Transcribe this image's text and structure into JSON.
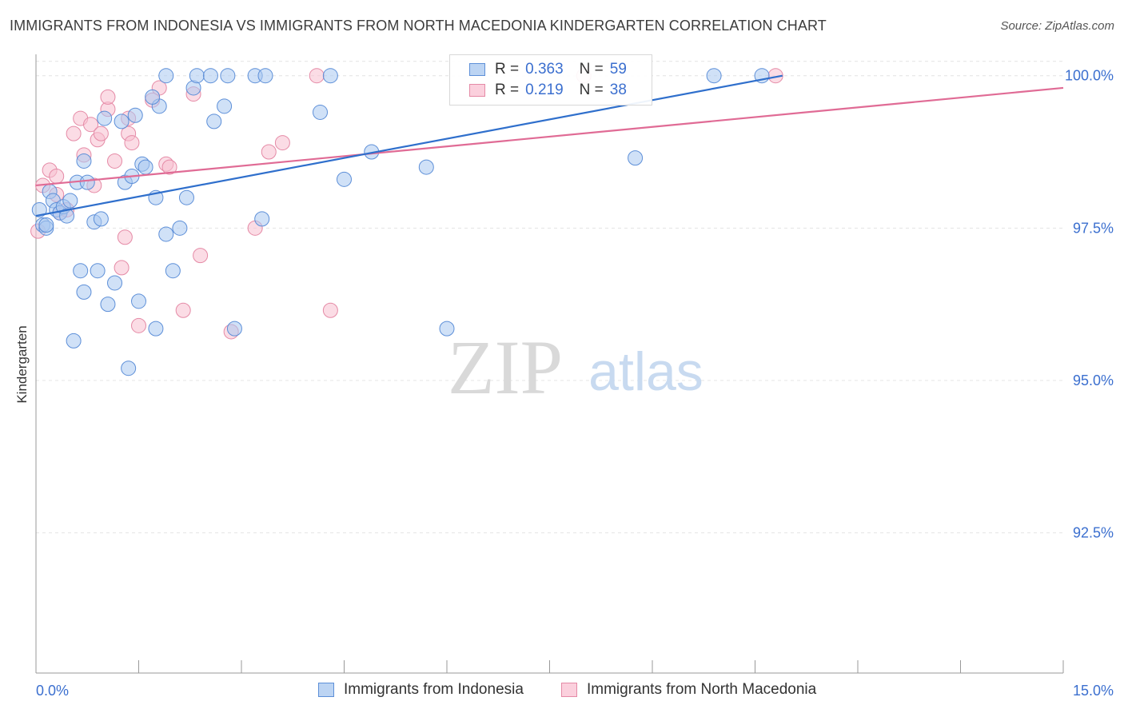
{
  "header": {
    "title": "IMMIGRANTS FROM INDONESIA VS IMMIGRANTS FROM NORTH MACEDONIA KINDERGARTEN CORRELATION CHART",
    "source": "Source: ZipAtlas.com"
  },
  "watermark": {
    "zip": "ZIP",
    "atlas": "atlas"
  },
  "legend": {
    "rows": [
      {
        "r_label": "R =",
        "r_value": "0.363",
        "n_label": "N =",
        "n_value": "59"
      },
      {
        "r_label": "R =",
        "r_value": "0.219",
        "n_label": "N =",
        "n_value": "38"
      }
    ]
  },
  "chart_data": {
    "type": "scatter",
    "title": "IMMIGRANTS FROM INDONESIA VS IMMIGRANTS FROM NORTH MACEDONIA KINDERGARTEN CORRELATION CHART",
    "xlabel": "",
    "ylabel": "Kindergarten",
    "xlim": [
      0,
      15
    ],
    "ylim": [
      90.2,
      100.35
    ],
    "x_tick_labels": [
      "0.0%",
      "15.0%"
    ],
    "y_ticks": [
      100.0,
      97.5,
      95.0,
      92.5
    ],
    "y_tick_labels": [
      "100.0%",
      "97.5%",
      "95.0%",
      "92.5%"
    ],
    "grid": true,
    "legend_position": "bottom",
    "colors": {
      "indonesia_fill": "#a9c8f0",
      "indonesia_stroke": "#5d8fd8",
      "indonesia_line": "#2f6fcc",
      "macedonia_fill": "#f8bfd0",
      "macedonia_stroke": "#e58aa6",
      "macedonia_line": "#e06b95"
    },
    "series": [
      {
        "name": "Immigrants from Indonesia",
        "r": 0.363,
        "n": 59,
        "trend": {
          "x": [
            0.0,
            10.9
          ],
          "y": [
            97.7,
            100.0
          ]
        },
        "points": [
          [
            0.05,
            97.8
          ],
          [
            0.1,
            97.55
          ],
          [
            0.15,
            97.5
          ],
          [
            0.2,
            98.1
          ],
          [
            0.25,
            97.95
          ],
          [
            0.3,
            97.8
          ],
          [
            0.35,
            97.75
          ],
          [
            0.4,
            97.85
          ],
          [
            0.45,
            97.7
          ],
          [
            0.5,
            97.95
          ],
          [
            0.6,
            98.25
          ],
          [
            0.55,
            95.65
          ],
          [
            0.7,
            98.6
          ],
          [
            0.75,
            98.25
          ],
          [
            0.85,
            97.6
          ],
          [
            0.95,
            97.65
          ],
          [
            0.65,
            96.8
          ],
          [
            0.9,
            96.8
          ],
          [
            0.7,
            96.45
          ],
          [
            1.0,
            99.3
          ],
          [
            1.05,
            96.25
          ],
          [
            1.15,
            96.6
          ],
          [
            1.25,
            99.25
          ],
          [
            1.3,
            98.25
          ],
          [
            1.4,
            98.35
          ],
          [
            1.45,
            99.35
          ],
          [
            1.5,
            96.3
          ],
          [
            1.55,
            98.55
          ],
          [
            1.6,
            98.5
          ],
          [
            1.75,
            98.0
          ],
          [
            1.8,
            99.5
          ],
          [
            1.9,
            100.0
          ],
          [
            2.0,
            96.8
          ],
          [
            2.1,
            97.5
          ],
          [
            2.2,
            98.0
          ],
          [
            1.7,
            99.65
          ],
          [
            2.3,
            99.8
          ],
          [
            2.35,
            100.0
          ],
          [
            2.55,
            100.0
          ],
          [
            2.6,
            99.25
          ],
          [
            2.75,
            99.5
          ],
          [
            2.8,
            100.0
          ],
          [
            3.2,
            100.0
          ],
          [
            3.3,
            97.65
          ],
          [
            3.35,
            100.0
          ],
          [
            2.9,
            95.85
          ],
          [
            1.35,
            95.2
          ],
          [
            1.9,
            97.4
          ],
          [
            1.75,
            95.85
          ],
          [
            4.15,
            99.4
          ],
          [
            4.3,
            100.0
          ],
          [
            4.5,
            98.3
          ],
          [
            4.9,
            98.75
          ],
          [
            5.7,
            98.5
          ],
          [
            6.0,
            95.85
          ],
          [
            8.75,
            98.65
          ],
          [
            9.9,
            100.0
          ],
          [
            10.6,
            100.0
          ],
          [
            0.15,
            97.55
          ]
        ]
      },
      {
        "name": "Immigrants from North Macedonia",
        "r": 0.219,
        "n": 38,
        "trend": {
          "x": [
            0.0,
            15.0
          ],
          "y": [
            98.2,
            99.8
          ]
        },
        "points": [
          [
            0.03,
            97.45
          ],
          [
            0.1,
            98.2
          ],
          [
            0.2,
            98.45
          ],
          [
            0.3,
            98.35
          ],
          [
            0.35,
            97.75
          ],
          [
            0.3,
            98.05
          ],
          [
            0.45,
            97.8
          ],
          [
            0.55,
            99.05
          ],
          [
            0.65,
            99.3
          ],
          [
            0.7,
            98.7
          ],
          [
            0.85,
            98.2
          ],
          [
            0.8,
            99.2
          ],
          [
            0.9,
            98.95
          ],
          [
            0.95,
            99.05
          ],
          [
            1.05,
            99.45
          ],
          [
            1.05,
            99.65
          ],
          [
            1.15,
            98.6
          ],
          [
            1.25,
            96.85
          ],
          [
            1.3,
            97.35
          ],
          [
            1.35,
            99.05
          ],
          [
            1.4,
            98.9
          ],
          [
            1.5,
            95.9
          ],
          [
            1.7,
            99.6
          ],
          [
            1.8,
            99.8
          ],
          [
            1.9,
            98.55
          ],
          [
            1.95,
            98.5
          ],
          [
            2.15,
            96.15
          ],
          [
            2.3,
            99.7
          ],
          [
            2.4,
            97.05
          ],
          [
            2.85,
            95.8
          ],
          [
            3.2,
            97.5
          ],
          [
            3.4,
            98.75
          ],
          [
            3.6,
            98.9
          ],
          [
            4.1,
            100.0
          ],
          [
            4.3,
            96.15
          ],
          [
            8.0,
            100.0
          ],
          [
            10.8,
            100.0
          ],
          [
            1.35,
            99.3
          ]
        ]
      }
    ]
  },
  "bottom_legend": {
    "items": [
      "Immigrants from Indonesia",
      "Immigrants from North Macedonia"
    ]
  }
}
